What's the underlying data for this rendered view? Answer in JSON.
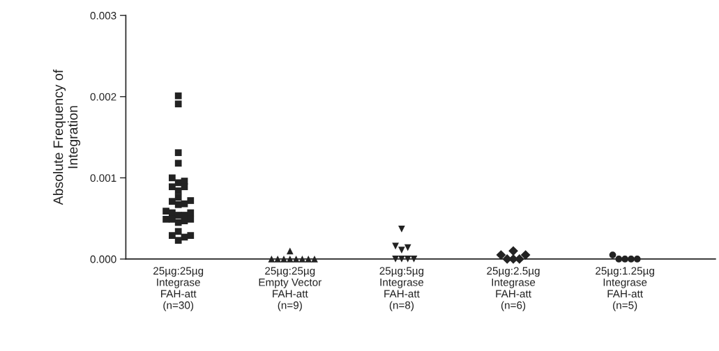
{
  "chart_data": {
    "type": "scatter",
    "ylabel": "Absolute Frequency of\nIntegration",
    "categories": [
      "25µg:25µg\nIntegrase\nFAH-att\n(n=30)",
      "25µg:25µg\nEmpty Vector\nFAH-att\n(n=9)",
      "25µg:5µg\nIntegrase\nFAH-att\n(n=8)",
      "25µg:2.5µg\nIntegrase\nFAH-att\n(n=6)",
      "25µg:1.25µg\nIntegrase\nFAH-att\n(n=5)"
    ],
    "series": [
      {
        "color": "#222222",
        "marker": "square",
        "x": [
          "25µg:25µg\nIntegrase\nFAH-att\n(n=30)",
          "25µg:25µg\nIntegrase\nFAH-att\n(n=30)",
          "25µg:25µg\nIntegrase\nFAH-att\n(n=30)",
          "25µg:25µg\nIntegrase\nFAH-att\n(n=30)",
          "25µg:25µg\nIntegrase\nFAH-att\n(n=30)",
          "25µg:25µg\nIntegrase\nFAH-att\n(n=30)",
          "25µg:25µg\nIntegrase\nFAH-att\n(n=30)",
          "25µg:25µg\nIntegrase\nFAH-att\n(n=30)",
          "25µg:25µg\nIntegrase\nFAH-att\n(n=30)",
          "25µg:25µg\nIntegrase\nFAH-att\n(n=30)",
          "25µg:25µg\nIntegrase\nFAH-att\n(n=30)",
          "25µg:25µg\nIntegrase\nFAH-att\n(n=30)",
          "25µg:25µg\nIntegrase\nFAH-att\n(n=30)",
          "25µg:25µg\nIntegrase\nFAH-att\n(n=30)",
          "25µg:25µg\nIntegrase\nFAH-att\n(n=30)",
          "25µg:25µg\nIntegrase\nFAH-att\n(n=30)",
          "25µg:25µg\nIntegrase\nFAH-att\n(n=30)",
          "25µg:25µg\nIntegrase\nFAH-att\n(n=30)",
          "25µg:25µg\nIntegrase\nFAH-att\n(n=30)",
          "25µg:25µg\nIntegrase\nFAH-att\n(n=30)",
          "25µg:25µg\nIntegrase\nFAH-att\n(n=30)",
          "25µg:25µg\nIntegrase\nFAH-att\n(n=30)",
          "25µg:25µg\nIntegrase\nFAH-att\n(n=30)",
          "25µg:25µg\nIntegrase\nFAH-att\n(n=30)",
          "25µg:25µg\nIntegrase\nFAH-att\n(n=30)",
          "25µg:25µg\nIntegrase\nFAH-att\n(n=30)",
          "25µg:25µg\nIntegrase\nFAH-att\n(n=30)",
          "25µg:25µg\nIntegrase\nFAH-att\n(n=30)",
          "25µg:25µg\nIntegrase\nFAH-att\n(n=30)",
          "25µg:25µg\nIntegrase\nFAH-att\n(n=30)"
        ],
        "values": [
          0.00201,
          0.00191,
          0.00131,
          0.00118,
          0.001,
          0.00094,
          0.00096,
          0.00089,
          0.00089,
          0.00084,
          0.00076,
          0.00071,
          0.00072,
          0.00067,
          0.00068,
          0.00059,
          0.00057,
          0.00057,
          0.00054,
          0.00054,
          0.00049,
          0.00047,
          0.00049,
          0.00049,
          0.00034,
          0.00029,
          0.00027,
          0.00029,
          0.00023,
          0.00045
        ]
      },
      {
        "color": "#222222",
        "marker": "triangle",
        "x": [
          "25µg:25µg\nEmpty Vector\nFAH-att\n(n=9)",
          "25µg:25µg\nEmpty Vector\nFAH-att\n(n=9)",
          "25µg:25µg\nEmpty Vector\nFAH-att\n(n=9)",
          "25µg:25µg\nEmpty Vector\nFAH-att\n(n=9)",
          "25µg:25µg\nEmpty Vector\nFAH-att\n(n=9)",
          "25µg:25µg\nEmpty Vector\nFAH-att\n(n=9)",
          "25µg:25µg\nEmpty Vector\nFAH-att\n(n=9)",
          "25µg:25µg\nEmpty Vector\nFAH-att\n(n=9)",
          "25µg:25µg\nEmpty Vector\nFAH-att\n(n=9)"
        ],
        "values": [
          0.0001,
          0.0,
          0.0,
          0.0,
          0.0,
          0.0,
          0.0,
          0.0,
          0.0
        ]
      },
      {
        "color": "#222222",
        "marker": "triangle_down",
        "x": [
          "25µg:5µg\nIntegrase\nFAH-att\n(n=8)",
          "25µg:5µg\nIntegrase\nFAH-att\n(n=8)",
          "25µg:5µg\nIntegrase\nFAH-att\n(n=8)",
          "25µg:5µg\nIntegrase\nFAH-att\n(n=8)",
          "25µg:5µg\nIntegrase\nFAH-att\n(n=8)",
          "25µg:5µg\nIntegrase\nFAH-att\n(n=8)",
          "25µg:5µg\nIntegrase\nFAH-att\n(n=8)",
          "25µg:5µg\nIntegrase\nFAH-att\n(n=8)"
        ],
        "values": [
          0.00037,
          0.00016,
          0.00011,
          0.00014,
          0.0,
          0.0,
          0.0,
          0.0
        ]
      },
      {
        "color": "#222222",
        "marker": "diamond",
        "x": [
          "25µg:2.5µg\nIntegrase\nFAH-att\n(n=6)",
          "25µg:2.5µg\nIntegrase\nFAH-att\n(n=6)",
          "25µg:2.5µg\nIntegrase\nFAH-att\n(n=6)",
          "25µg:2.5µg\nIntegrase\nFAH-att\n(n=6)",
          "25µg:2.5µg\nIntegrase\nFAH-att\n(n=6)",
          "25µg:2.5µg\nIntegrase\nFAH-att\n(n=6)"
        ],
        "values": [
          0.0001,
          5e-05,
          5e-05,
          0.0,
          0.0,
          0.0
        ]
      },
      {
        "color": "#222222",
        "marker": "circle",
        "x": [
          "25µg:1.25µg\nIntegrase\nFAH-att\n(n=5)",
          "25µg:1.25µg\nIntegrase\nFAH-att\n(n=5)",
          "25µg:1.25µg\nIntegrase\nFAH-att\n(n=5)",
          "25µg:1.25µg\nIntegrase\nFAH-att\n(n=5)",
          "25µg:1.25µg\nIntegrase\nFAH-att\n(n=5)"
        ],
        "values": [
          5e-05,
          0.0,
          0.0,
          0.0,
          0.0
        ]
      }
    ],
    "ylim": [
      0,
      0.003
    ],
    "yticks": [
      {
        "value": 0,
        "label": "0.000"
      },
      {
        "value": 0.001,
        "label": "0.001"
      },
      {
        "value": 0.002,
        "label": "0.002"
      },
      {
        "value": 0.003,
        "label": "0.003"
      }
    ],
    "grid": false,
    "legend": false
  }
}
